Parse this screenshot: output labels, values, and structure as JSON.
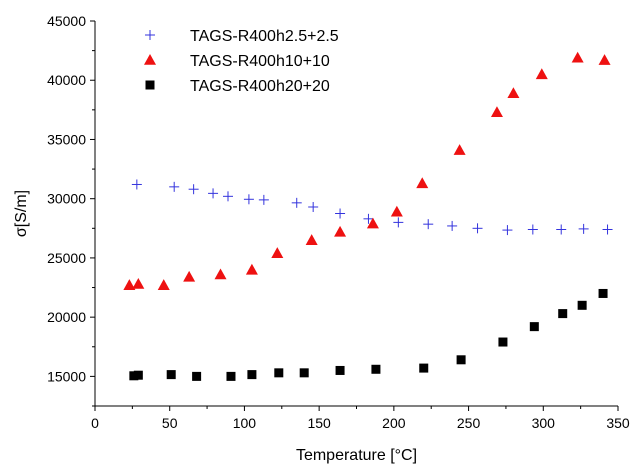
{
  "chart_data": {
    "type": "scatter",
    "title": "",
    "xlabel": "Temperature [°C]",
    "ylabel": "σ[S/m]",
    "xlim": [
      0,
      350
    ],
    "ylim": [
      12500,
      45000
    ],
    "xticks": [
      0,
      50,
      100,
      150,
      200,
      250,
      300,
      350
    ],
    "yticks": [
      15000,
      20000,
      25000,
      30000,
      35000,
      40000,
      45000
    ],
    "grid": false,
    "legend_position": "top-left",
    "series": [
      {
        "name": "TAGS-R400h2.5+2.5",
        "marker": "plus",
        "color": "#3333dd",
        "x": [
          28,
          53,
          66,
          79,
          89,
          103,
          113,
          135,
          146,
          164,
          183,
          203,
          223,
          239,
          256,
          276,
          293,
          312,
          327,
          343
        ],
        "y": [
          31200,
          31000,
          30800,
          30450,
          30200,
          29950,
          29900,
          29650,
          29300,
          28750,
          28300,
          28000,
          27850,
          27700,
          27500,
          27350,
          27400,
          27400,
          27450,
          27400
        ]
      },
      {
        "name": "TAGS-R400h10+10",
        "marker": "triangle",
        "color": "#ee1111",
        "x": [
          23,
          29,
          46,
          63,
          84,
          105,
          122,
          145,
          164,
          186,
          202,
          219,
          244,
          269,
          280,
          299,
          323,
          341
        ],
        "y": [
          22700,
          22800,
          22700,
          23400,
          23600,
          24000,
          25400,
          26500,
          27200,
          27900,
          28900,
          31300,
          34100,
          37300,
          38900,
          40500,
          41900,
          41700
        ]
      },
      {
        "name": "TAGS-R400h20+20",
        "marker": "square",
        "color": "#000000",
        "x": [
          26,
          29,
          51,
          68,
          91,
          105,
          123,
          140,
          164,
          188,
          220,
          245,
          273,
          294,
          313,
          326,
          340
        ],
        "y": [
          15050,
          15100,
          15150,
          15000,
          15000,
          15150,
          15300,
          15300,
          15500,
          15600,
          15700,
          16400,
          17900,
          19200,
          20300,
          21000,
          22000
        ]
      }
    ]
  }
}
